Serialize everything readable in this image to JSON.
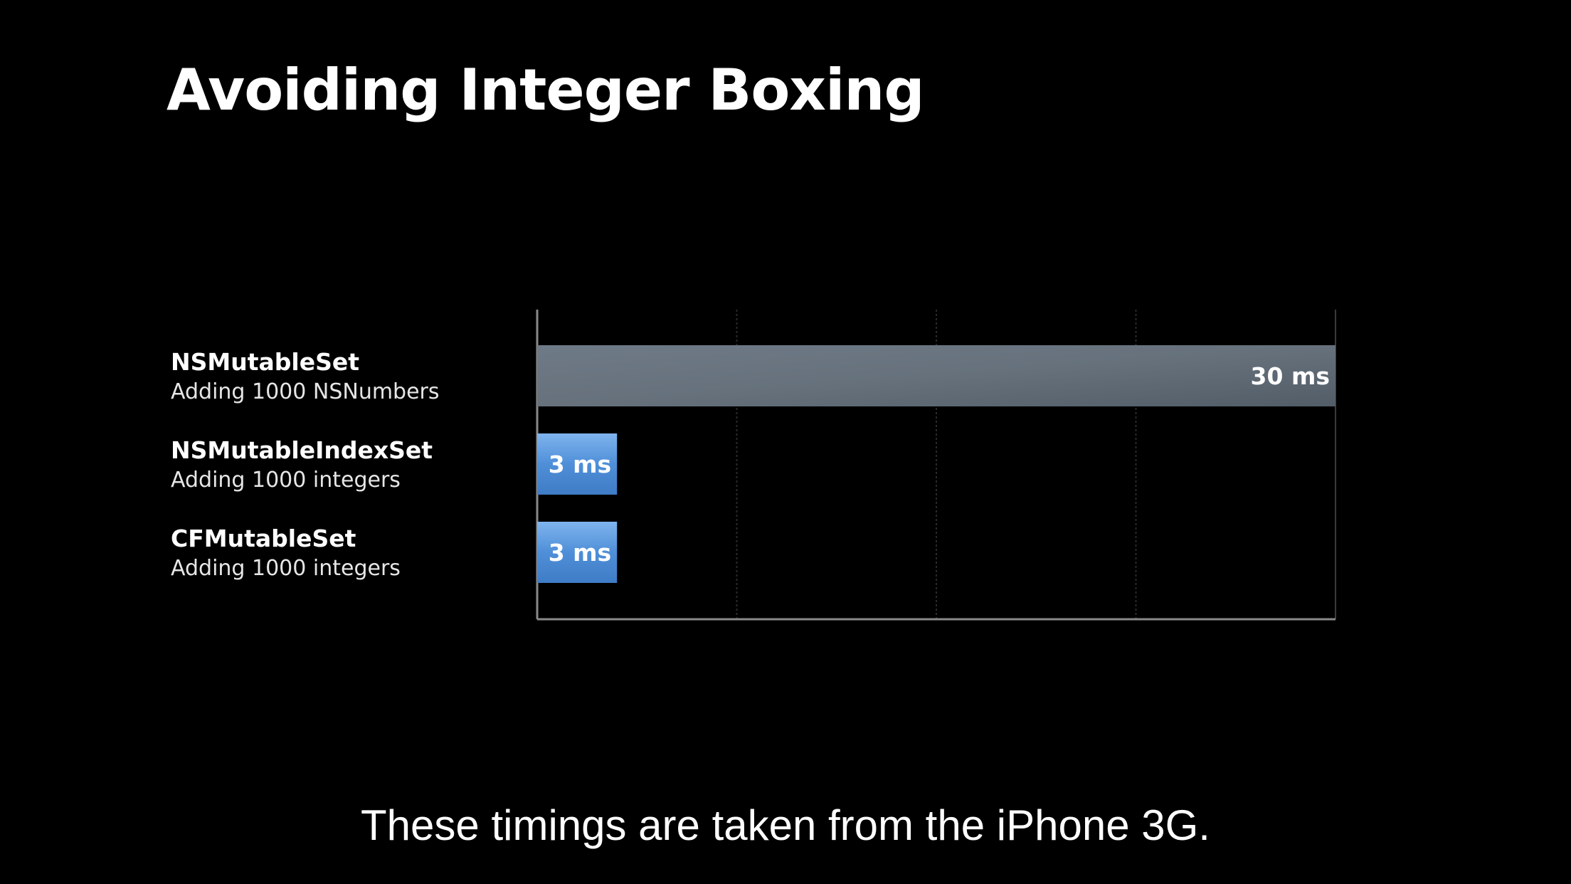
{
  "slide": {
    "title": "Avoiding Integer Boxing",
    "caption": "These timings are taken from the iPhone 3G."
  },
  "chart_data": {
    "type": "bar",
    "orientation": "horizontal",
    "title": "Avoiding Integer Boxing",
    "xlabel": "",
    "ylabel": "",
    "unit": "ms",
    "xlim": [
      0,
      30
    ],
    "grid": true,
    "categories": [
      {
        "name": "NSMutableSet",
        "detail": "Adding 1000 NSNumbers"
      },
      {
        "name": "NSMutableIndexSet",
        "detail": "Adding 1000 integers"
      },
      {
        "name": "CFMutableSet",
        "detail": "Adding 1000 integers"
      }
    ],
    "values": [
      30,
      3,
      3
    ],
    "value_labels": [
      "30 ms",
      "3 ms",
      "3 ms"
    ],
    "colors": [
      "#66717d",
      "#5a9be0",
      "#5a9be0"
    ]
  }
}
